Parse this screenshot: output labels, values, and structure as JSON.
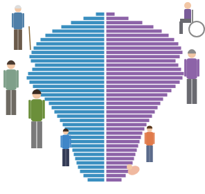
{
  "chart_data": {
    "type": "pyramid",
    "orientation": "horizontal",
    "tick_labels": false,
    "grid": false,
    "categories": [
      null,
      null,
      null,
      null,
      null,
      null,
      null,
      null,
      null,
      null,
      null,
      null,
      null,
      null,
      null,
      null,
      null,
      null,
      null,
      null,
      null,
      null,
      null,
      null,
      null,
      null,
      null,
      null,
      null,
      null,
      null,
      null,
      null,
      null,
      null,
      null,
      null,
      null,
      null,
      null
    ],
    "xlim": [
      0,
      120
    ],
    "series": [
      {
        "color": "#3a8fc0",
        "values": [
          12,
          30,
          48,
          62,
          75,
          85,
          92,
          98,
          102,
          105,
          108,
          106,
          100,
          104,
          110,
          112,
          108,
          103,
          98,
          92,
          86,
          80,
          76,
          72,
          68,
          64,
          60,
          57,
          54,
          52,
          50,
          48,
          46,
          44,
          42,
          40,
          38,
          35,
          30,
          24
        ]
      },
      {
        "color": "#8d63a8",
        "values": [
          12,
          32,
          52,
          68,
          80,
          90,
          98,
          104,
          108,
          110,
          106,
          100,
          104,
          108,
          112,
          110,
          106,
          100,
          94,
          88,
          82,
          78,
          74,
          70,
          66,
          62,
          58,
          55,
          52,
          50,
          48,
          46,
          44,
          42,
          40,
          38,
          36,
          33,
          28,
          22
        ]
      }
    ]
  }
}
